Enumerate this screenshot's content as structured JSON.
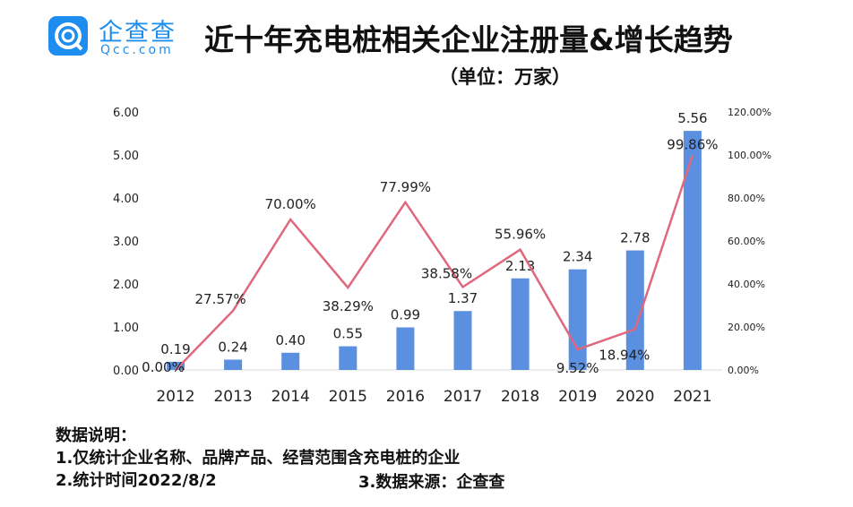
{
  "logo": {
    "text_cn": "企查查",
    "text_en": "Qcc.com"
  },
  "title": "近十年充电桩相关企业注册量&增长趋势",
  "unit": "（单位：万家）",
  "chart_data": {
    "type": "bar+line",
    "categories": [
      "2012",
      "2013",
      "2014",
      "2015",
      "2016",
      "2017",
      "2018",
      "2019",
      "2020",
      "2021"
    ],
    "series": [
      {
        "type": "bar",
        "axis": "left",
        "color": "#5b8fe0",
        "values": [
          0.19,
          0.24,
          0.4,
          0.55,
          0.99,
          1.37,
          2.13,
          2.34,
          2.78,
          5.56
        ],
        "labels": [
          "0.19",
          "0.24",
          "0.40",
          "0.55",
          "0.99",
          "1.37",
          "2.13",
          "2.34",
          "2.78",
          "5.56"
        ]
      },
      {
        "type": "line",
        "axis": "right",
        "color": "#e0687c",
        "values": [
          0,
          27.57,
          70.0,
          38.29,
          77.99,
          38.58,
          55.96,
          9.52,
          18.94,
          99.86
        ],
        "labels": [
          "0.00%",
          "27.57%",
          "70.00%",
          "38.29%",
          "77.99%",
          "38.58%",
          "55.96%",
          "9.52%",
          "18.94%",
          "99.86%"
        ]
      }
    ],
    "left_axis": {
      "ylim": [
        0,
        6
      ],
      "ticks": [
        "0.00",
        "1.00",
        "2.00",
        "3.00",
        "4.00",
        "5.00",
        "6.00"
      ]
    },
    "right_axis": {
      "ylim": [
        0,
        120
      ],
      "ticks": [
        "0.00%",
        "20.00%",
        "40.00%",
        "60.00%",
        "80.00%",
        "100.00%",
        "120.00%"
      ]
    },
    "grid": false
  },
  "notes": {
    "heading": "数据说明：",
    "line1": "1.仅统计企业名称、品牌产品、经营范围含充电桩的企业",
    "line2": "2.统计时间2022/8/2",
    "line3": "3.数据来源：企查查"
  }
}
